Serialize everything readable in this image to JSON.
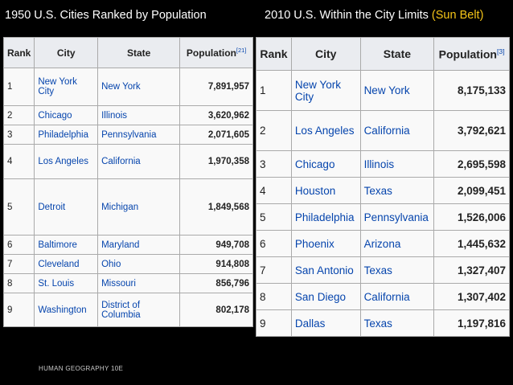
{
  "titles": {
    "left": "1950 U.S. Cities Ranked by Population",
    "right_main": "2010 U.S. Within the City Limits",
    "right_accent": "(Sun Belt)"
  },
  "table1950": {
    "headers": [
      "Rank",
      "City",
      "State",
      "Population"
    ],
    "ref": "[21]",
    "rows": [
      {
        "rank": "1",
        "city": "New York City",
        "state": "New York",
        "population": "7,891,957"
      },
      {
        "rank": "2",
        "city": "Chicago",
        "state": "Illinois",
        "population": "3,620,962"
      },
      {
        "rank": "3",
        "city": "Philadelphia",
        "state": "Pennsylvania",
        "population": "2,071,605"
      },
      {
        "rank": "4",
        "city": "Los Angeles",
        "state": "California",
        "population": "1,970,358"
      },
      {
        "rank": "5",
        "city": "Detroit",
        "state": "Michigan",
        "population": "1,849,568"
      },
      {
        "rank": "6",
        "city": "Baltimore",
        "state": "Maryland",
        "population": "949,708"
      },
      {
        "rank": "7",
        "city": "Cleveland",
        "state": "Ohio",
        "population": "914,808"
      },
      {
        "rank": "8",
        "city": "St. Louis",
        "state": "Missouri",
        "population": "856,796"
      },
      {
        "rank": "9",
        "city": "Washington",
        "state": "District of Columbia",
        "population": "802,178"
      }
    ]
  },
  "table2010": {
    "headers": [
      "Rank",
      "City",
      "State",
      "Population"
    ],
    "ref": "[3]",
    "rows": [
      {
        "rank": "1",
        "city": "New York City",
        "state": "New York",
        "population": "8,175,133"
      },
      {
        "rank": "2",
        "city": "Los Angeles",
        "state": "California",
        "population": "3,792,621"
      },
      {
        "rank": "3",
        "city": "Chicago",
        "state": "Illinois",
        "population": "2,695,598"
      },
      {
        "rank": "4",
        "city": "Houston",
        "state": "Texas",
        "population": "2,099,451"
      },
      {
        "rank": "5",
        "city": "Philadelphia",
        "state": "Pennsylvania",
        "population": "1,526,006"
      },
      {
        "rank": "6",
        "city": "Phoenix",
        "state": "Arizona",
        "population": "1,445,632"
      },
      {
        "rank": "7",
        "city": "San Antonio",
        "state": "Texas",
        "population": "1,327,407"
      },
      {
        "rank": "8",
        "city": "San Diego",
        "state": "California",
        "population": "1,307,402"
      },
      {
        "rank": "9",
        "city": "Dallas",
        "state": "Texas",
        "population": "1,197,816"
      }
    ]
  },
  "footer": "HUMAN GEOGRAPHY 10E"
}
